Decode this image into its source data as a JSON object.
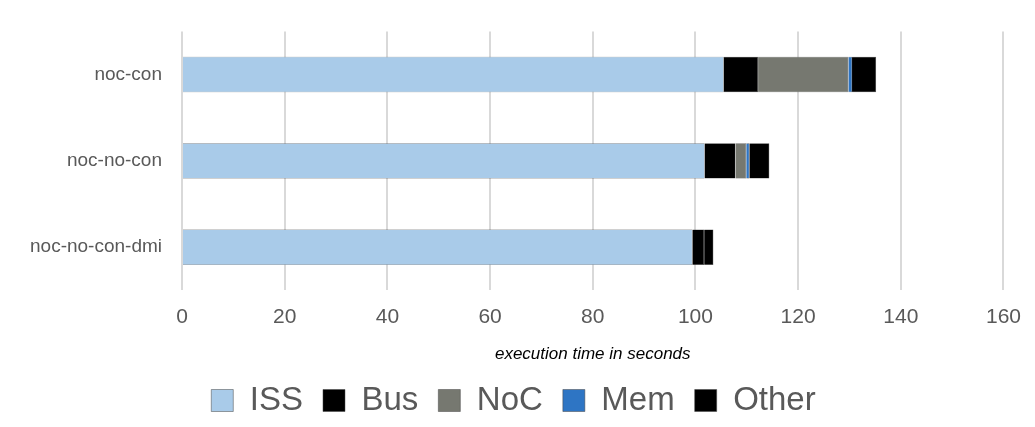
{
  "chart_data": {
    "type": "bar",
    "orientation": "horizontal",
    "stacked": true,
    "xlabel": "execution time in seconds",
    "categories": [
      "noc-con",
      "noc-no-con",
      "noc-no-con-dmi"
    ],
    "series": [
      {
        "name": "ISS",
        "color": "#a9cbe9",
        "values": [
          105.5,
          101.8,
          99.4
        ]
      },
      {
        "name": "Bus",
        "color": "#000000",
        "values": [
          6.7,
          6.0,
          2.3
        ]
      },
      {
        "name": "NoC",
        "color": "#767870",
        "values": [
          17.6,
          2.1,
          0
        ]
      },
      {
        "name": "Mem",
        "color": "#2e75c4",
        "values": [
          0.7,
          0.6,
          0
        ]
      },
      {
        "name": "Other",
        "color": "#000000",
        "values": [
          4.7,
          3.9,
          1.8
        ]
      }
    ],
    "xlim": [
      0,
      160
    ],
    "xticks": [
      0,
      20,
      40,
      60,
      80,
      100,
      120,
      140,
      160
    ],
    "grid": "x",
    "legend": "bottom"
  }
}
